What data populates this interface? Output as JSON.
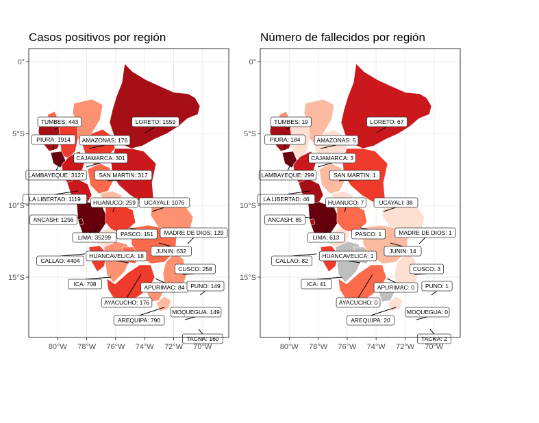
{
  "panels": [
    {
      "title": "Casos positivos por región",
      "regions": {
        "tumbes": {
          "label": "TUMBES: 443",
          "value": 443
        },
        "piura": {
          "label": "PIURA: 1914",
          "value": 1914
        },
        "loreto": {
          "label": "LORETO: 1559",
          "value": 1559
        },
        "amazonas": {
          "label": "AMAZONAS: 176",
          "value": 176
        },
        "cajamarca": {
          "label": "CAJAMARCA: 301",
          "value": 301
        },
        "lambayeque": {
          "label": "LAMBAYEQUE: 3127",
          "value": 3127
        },
        "sanmartin": {
          "label": "SAN MARTIN: 317",
          "value": 317
        },
        "lalibertad": {
          "label": "LA LIBERTAD: 1119",
          "value": 1119
        },
        "huanuco": {
          "label": "HUANUCO: 259",
          "value": 259
        },
        "ucayali": {
          "label": "UCAYALI: 1076",
          "value": 1076
        },
        "ancash": {
          "label": "ANCASH: 1256",
          "value": 1256
        },
        "lima": {
          "label": "LIMA: 35299",
          "value": 35299
        },
        "pasco": {
          "label": "PASCO: 151",
          "value": 151
        },
        "madrededios": {
          "label": "MADRE DE DIOS: 129",
          "value": 129
        },
        "junin": {
          "label": "JUNIN: 632",
          "value": 632
        },
        "callao": {
          "label": "CALLAO: 4404",
          "value": 4404
        },
        "huancavelica": {
          "label": "HUANCAVELICA: 18",
          "value": 18
        },
        "cusco": {
          "label": "CUSCO: 258",
          "value": 258
        },
        "ica": {
          "label": "ICA: 708",
          "value": 708
        },
        "apurimac": {
          "label": "APURIMAC: 84",
          "value": 84
        },
        "puno": {
          "label": "PUNO: 149",
          "value": 149
        },
        "ayacucho": {
          "label": "AYACUCHO: 176",
          "value": 176
        },
        "moquegua": {
          "label": "MOQUEGUA: 149",
          "value": 149
        },
        "arequipa": {
          "label": "AREQUIPA: 790",
          "value": 790
        },
        "tacna": {
          "label": "TACNA: 160",
          "value": 160
        }
      }
    },
    {
      "title": "Número de fallecidos por región",
      "regions": {
        "tumbes": {
          "label": "TUMBES: 19",
          "value": 19
        },
        "piura": {
          "label": "PIURA: 184",
          "value": 184
        },
        "loreto": {
          "label": "LORETO: 67",
          "value": 67
        },
        "amazonas": {
          "label": "AMAZONAS: 5",
          "value": 5
        },
        "cajamarca": {
          "label": "CAJAMARCA: 3",
          "value": 3
        },
        "lambayeque": {
          "label": "LAMBAYEQUE: 299",
          "value": 299
        },
        "sanmartin": {
          "label": "SAN MARTIN: 1",
          "value": 1
        },
        "lalibertad": {
          "label": "LA LIBERTAD: 46",
          "value": 46
        },
        "huanuco": {
          "label": "HUANUCO: 7",
          "value": 7
        },
        "ucayali": {
          "label": "UCAYALI: 38",
          "value": 38
        },
        "ancash": {
          "label": "ANCASH: 85",
          "value": 85
        },
        "lima": {
          "label": "LIMA: 613",
          "value": 613
        },
        "pasco": {
          "label": "PASCO: 1",
          "value": 1
        },
        "madrededios": {
          "label": "MADRE DE DIOS: 1",
          "value": 1
        },
        "junin": {
          "label": "JUNIN: 14",
          "value": 14
        },
        "callao": {
          "label": "CALLAO: 82",
          "value": 82
        },
        "huancavelica": {
          "label": "HUANCAVELICA: 1",
          "value": 1
        },
        "cusco": {
          "label": "CUSCO: 3",
          "value": 3
        },
        "ica": {
          "label": "ICA: 41",
          "value": 41
        },
        "apurimac": {
          "label": "APURIMAC: 0",
          "value": 0
        },
        "puno": {
          "label": "PUNO: 1",
          "value": 1
        },
        "ayacucho": {
          "label": "AYACUCHO: 0",
          "value": 0
        },
        "moquegua": {
          "label": "MOQUEGUA: 0",
          "value": 0
        },
        "arequipa": {
          "label": "AREQUIPA: 20",
          "value": 20
        },
        "tacna": {
          "label": "TACNA: 2",
          "value": 2
        }
      }
    }
  ],
  "axes": {
    "x_ticks": [
      "80°W",
      "78°W",
      "76°W",
      "74°W",
      "72°W",
      "70°W"
    ],
    "y_ticks": [
      "0°",
      "5°S",
      "10°S",
      "15°S"
    ]
  },
  "colors": {
    "darkest": "#67000d",
    "dark": "#a50f15",
    "mid_dark": "#cb181d",
    "mid": "#ef3b2c",
    "mid_light": "#fb6a4a",
    "light": "#fc9272",
    "lighter": "#fcbba1",
    "lightest": "#fee0d2",
    "zero": "#bebebe"
  }
}
